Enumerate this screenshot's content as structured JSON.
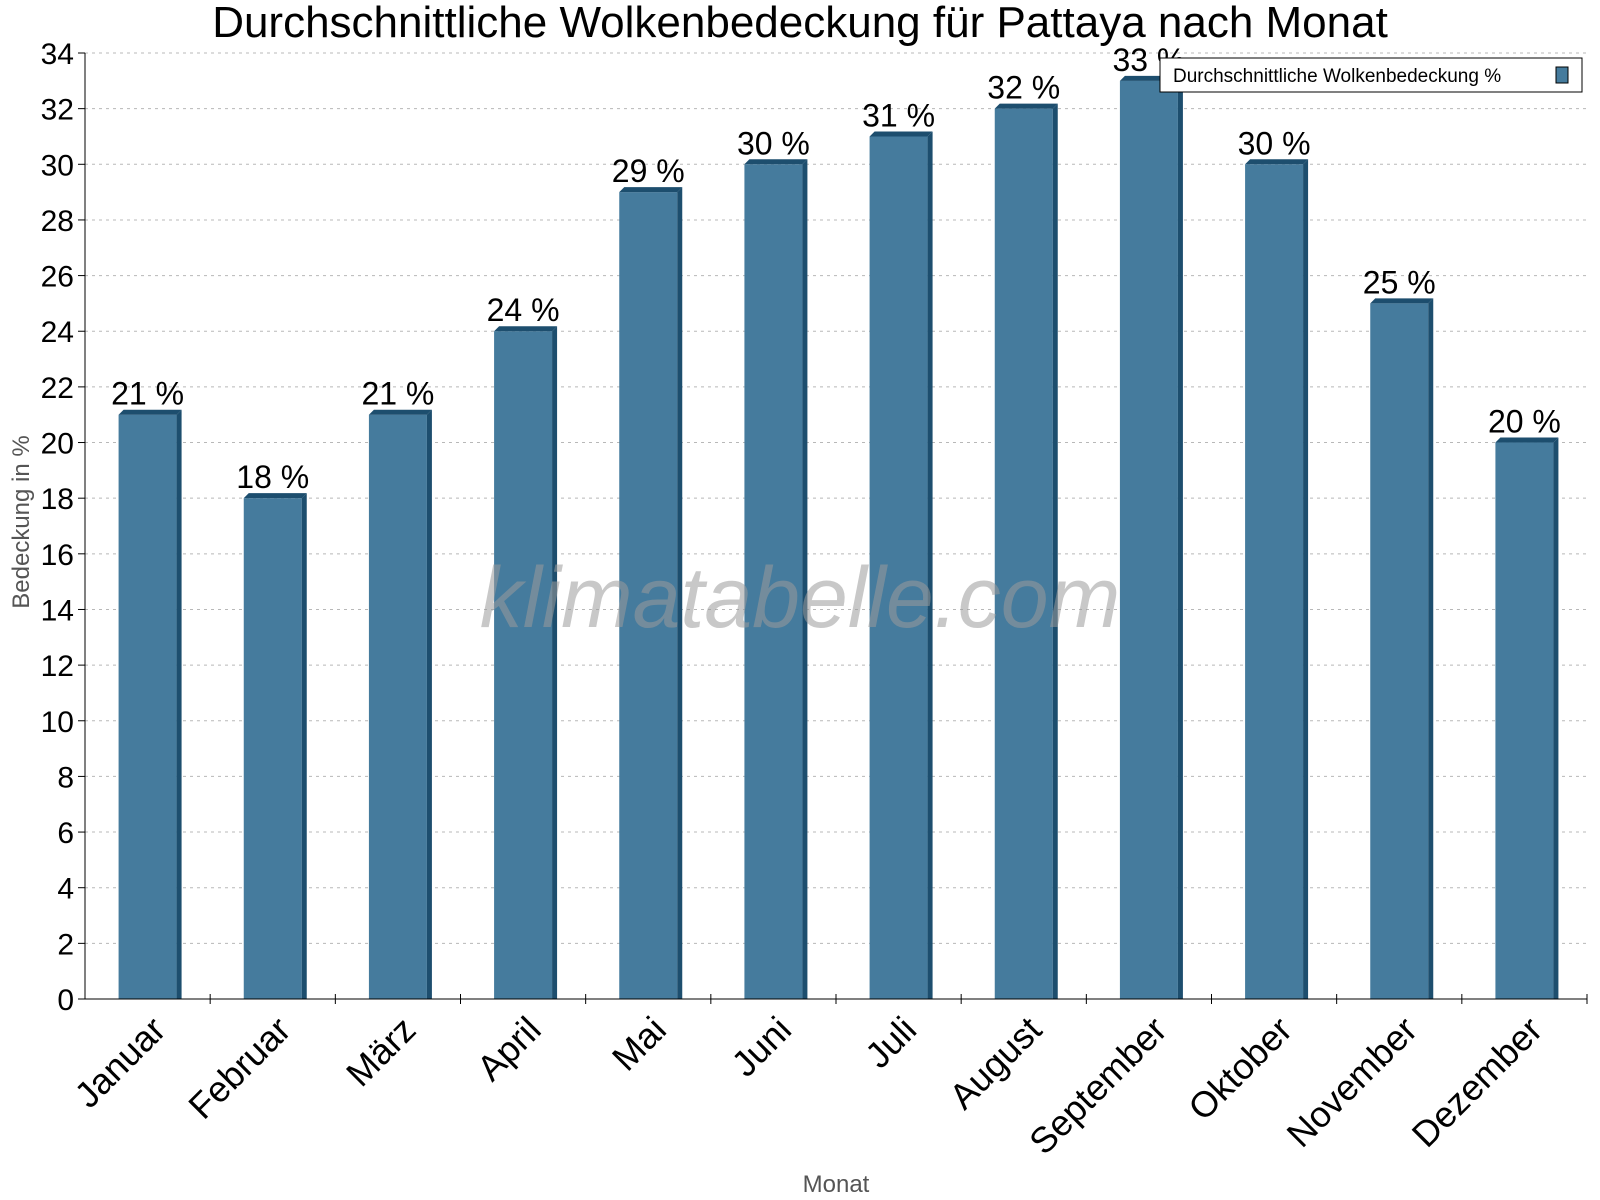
{
  "chart_data": {
    "type": "bar",
    "title": "Durchschnittliche Wolkenbedeckung für Pattaya nach Monat",
    "xlabel": "Monat",
    "ylabel": "Bedeckung in %",
    "categories": [
      "Januar",
      "Februar",
      "März",
      "April",
      "Mai",
      "Juni",
      "Juli",
      "August",
      "September",
      "Oktober",
      "November",
      "Dezember"
    ],
    "series": [
      {
        "name": "Durchschnittliche Wolkenbedeckung %",
        "values": [
          21,
          18,
          21,
          24,
          29,
          30,
          31,
          32,
          33,
          30,
          25,
          20
        ],
        "labels": [
          "21 %",
          "18 %",
          "21 %",
          "24 %",
          "29 %",
          "30 %",
          "31 %",
          "32 %",
          "33 %",
          "30 %",
          "25 %",
          "20 %"
        ],
        "color": "#457b9d",
        "edge_color": "#1d4e6e"
      }
    ],
    "ylim": [
      0,
      34
    ],
    "ytick_step": 2,
    "grid": true,
    "legend_position": "top-right",
    "watermark": "klimatabelle.com"
  }
}
